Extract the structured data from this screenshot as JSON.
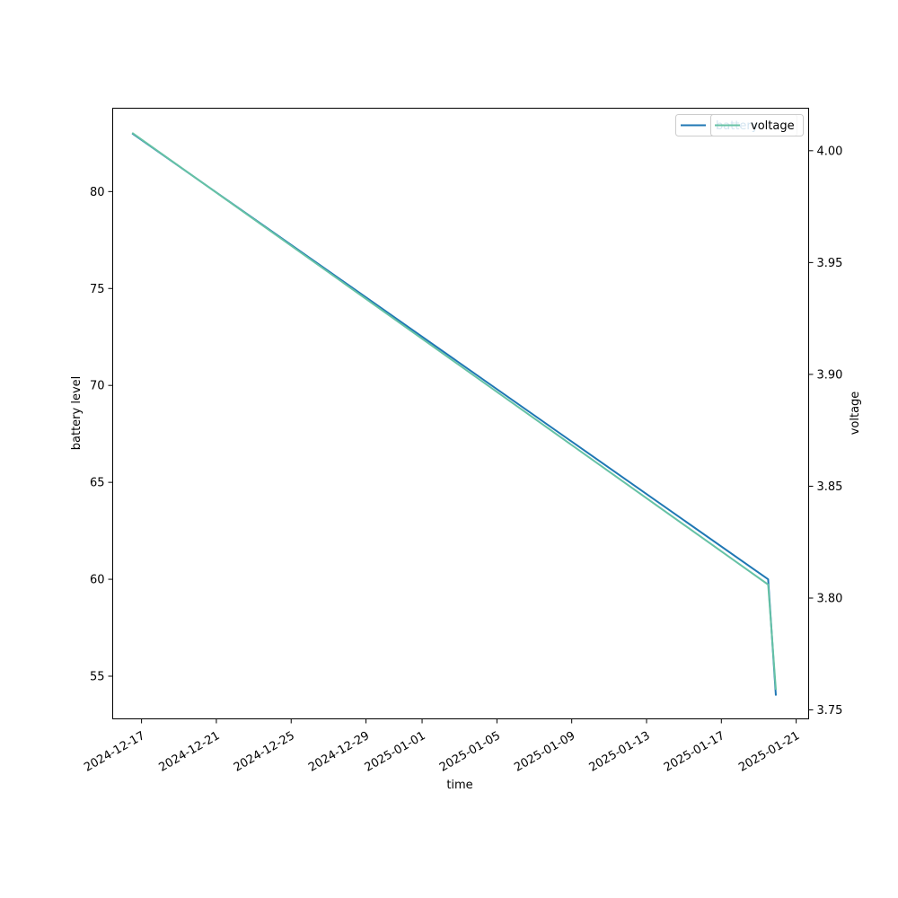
{
  "chart_data": {
    "type": "line",
    "xlabel": "time",
    "ylabel_left": "battery level",
    "ylabel_right": "voltage",
    "x_axis_type": "date",
    "xlim": [
      "2024-12-15T11:00",
      "2025-01-21T16:00"
    ],
    "ylim_left": [
      52.8,
      84.3
    ],
    "ylim_right": [
      3.746,
      4.019
    ],
    "x_ticks": [
      "2024-12-17",
      "2024-12-21",
      "2024-12-25",
      "2024-12-29",
      "2025-01-01",
      "2025-01-05",
      "2025-01-09",
      "2025-01-13",
      "2025-01-17",
      "2025-01-21"
    ],
    "y_ticks_left": [
      55,
      60,
      65,
      70,
      75,
      80
    ],
    "y_ticks_right": [
      3.75,
      3.8,
      3.85,
      3.9,
      3.95,
      4.0
    ],
    "grid": false,
    "series": [
      {
        "name": "battery",
        "axis": "left",
        "color": "#1f77b4",
        "points": [
          {
            "x": "2024-12-16T12:00",
            "y": 83.0
          },
          {
            "x": "2025-01-19T12:00",
            "y": 60.0
          },
          {
            "x": "2025-01-19T22:00",
            "y": 54.0
          }
        ]
      },
      {
        "name": "voltage",
        "axis": "right",
        "color": "#66c2a5",
        "points": [
          {
            "x": "2024-12-16T12:00",
            "y": 4.008
          },
          {
            "x": "2025-01-19T12:00",
            "y": 3.806
          },
          {
            "x": "2025-01-19T22:00",
            "y": 3.759
          }
        ]
      }
    ],
    "legends": [
      {
        "label": "battery",
        "color": "#1f77b4",
        "position": "top-right"
      },
      {
        "label": "voltage",
        "color": "#66c2a5",
        "position": "top-right"
      }
    ]
  }
}
